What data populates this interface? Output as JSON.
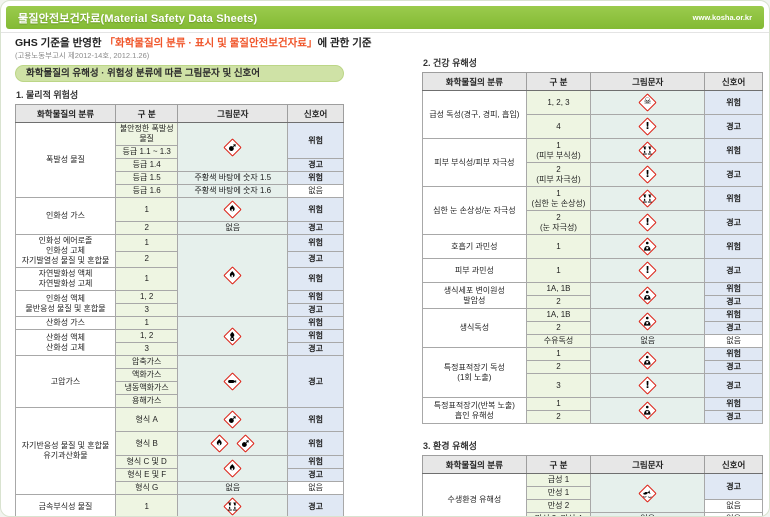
{
  "banner": {
    "title": "물질안전보건자료(Material Safety Data Sheets)",
    "url": "www.kosha.or.kr"
  },
  "subtitle": {
    "prefix": "GHS 기준을 반영한 ",
    "highlight": "「화학물질의 분류 · 표시 및 물질안전보건자료」",
    "suffix": "에 관한 기준",
    "notice": "(고용노동부고시 제2012-14호, 2012.1.26)"
  },
  "section_title": "화학물질의 유해성 · 위험성 분류에 따른 그림문자 및 신호어",
  "signal_words": {
    "danger": "위험",
    "warning": "경고",
    "none": "없음"
  },
  "colors": {
    "banner_green": "#8dc63f",
    "section_bar_green": "#cfe2a6",
    "danger_text": "#f0512a",
    "warning_text": "#f7941d",
    "ghs_diamond_red": "#dc2318",
    "division_col_bg": "#eef5e2",
    "pictogram_col_bg": "#e6f0ec",
    "signal_col_bg": "#e0e8f4"
  },
  "tables": [
    {
      "id": "physical",
      "label": "1. 물리적 위험성",
      "headers": [
        "화학물질의 분류",
        "구 분",
        "그림문자",
        "신호어"
      ],
      "rows": [
        [
          {
            "c": 0,
            "t": "폭발성 물질",
            "rs": 5
          },
          {
            "c": 1,
            "t": "불안정한 폭발성물질"
          },
          {
            "c": 2,
            "ic": [
              "exploding-bomb"
            ],
            "rs": 3
          },
          {
            "c": 3,
            "t": "위험",
            "sw": "danger",
            "rs": 2
          }
        ],
        [
          {
            "c": 1,
            "t": "등급 1.1 ~ 1.3"
          }
        ],
        [
          {
            "c": 1,
            "t": "등급 1.4"
          },
          {
            "c": 3,
            "t": "경고",
            "sw": "warning"
          }
        ],
        [
          {
            "c": 1,
            "t": "등급 1.5"
          },
          {
            "c": 2,
            "t": "주황색 바탕에 숫자 1.5"
          },
          {
            "c": 3,
            "t": "위험",
            "sw": "danger"
          }
        ],
        [
          {
            "c": 1,
            "t": "등급 1.6"
          },
          {
            "c": 2,
            "t": "주황색 바탕에 숫자 1.6"
          },
          {
            "c": 3,
            "t": "없음",
            "sw": "none"
          }
        ],
        [
          {
            "c": 0,
            "t": "인화성 가스",
            "rs": 2
          },
          {
            "c": 1,
            "t": "1"
          },
          {
            "c": 2,
            "ic": [
              "flame"
            ]
          },
          {
            "c": 3,
            "t": "위험",
            "sw": "danger"
          }
        ],
        [
          {
            "c": 1,
            "t": "2"
          },
          {
            "c": 2,
            "t": "없음"
          },
          {
            "c": 3,
            "t": "경고",
            "sw": "warning"
          }
        ],
        [
          {
            "c": 0,
            "t": "인화성 에어로졸\n인화성 고체\n자기발열성 물질 및 혼합물",
            "rs": 2
          },
          {
            "c": 1,
            "t": "1"
          },
          {
            "c": 2,
            "ic": [
              "flame"
            ],
            "rs": 5
          },
          {
            "c": 3,
            "t": "위험",
            "sw": "danger"
          }
        ],
        [
          {
            "c": 1,
            "t": "2"
          },
          {
            "c": 3,
            "t": "경고",
            "sw": "warning"
          }
        ],
        [
          {
            "c": 0,
            "t": "자연발화성 액체\n자연발화성 고체"
          },
          {
            "c": 1,
            "t": "1"
          },
          {
            "c": 3,
            "t": "위험",
            "sw": "danger"
          }
        ],
        [
          {
            "c": 0,
            "t": "인화성 액체\n물반응성 물질 및 혼합물",
            "rs": 2
          },
          {
            "c": 1,
            "t": "1, 2"
          },
          {
            "c": 3,
            "t": "위험",
            "sw": "danger"
          }
        ],
        [
          {
            "c": 1,
            "t": "3"
          },
          {
            "c": 3,
            "t": "경고",
            "sw": "warning"
          }
        ],
        [
          {
            "c": 0,
            "t": "산화성 가스"
          },
          {
            "c": 1,
            "t": "1"
          },
          {
            "c": 2,
            "ic": [
              "flame-over-circle"
            ],
            "rs": 3
          },
          {
            "c": 3,
            "t": "위험",
            "sw": "danger"
          }
        ],
        [
          {
            "c": 0,
            "t": "산화성 액체\n산화성 고체",
            "rs": 2
          },
          {
            "c": 1,
            "t": "1, 2"
          },
          {
            "c": 3,
            "t": "위험",
            "sw": "danger"
          }
        ],
        [
          {
            "c": 1,
            "t": "3"
          },
          {
            "c": 3,
            "t": "경고",
            "sw": "warning"
          }
        ],
        [
          {
            "c": 0,
            "t": "고압가스",
            "rs": 4
          },
          {
            "c": 1,
            "t": "압축가스"
          },
          {
            "c": 2,
            "ic": [
              "gas-cylinder"
            ],
            "rs": 4
          },
          {
            "c": 3,
            "t": "경고",
            "sw": "warning",
            "rs": 4
          }
        ],
        [
          {
            "c": 1,
            "t": "액화가스"
          }
        ],
        [
          {
            "c": 1,
            "t": "냉동액화가스"
          }
        ],
        [
          {
            "c": 1,
            "t": "용해가스"
          }
        ],
        [
          {
            "c": 0,
            "t": "자기반응성 물질 및 혼합물\n유기과산화물",
            "rs": 5
          },
          {
            "c": 1,
            "t": "형식 A"
          },
          {
            "c": 2,
            "ic": [
              "exploding-bomb"
            ]
          },
          {
            "c": 3,
            "t": "위험",
            "sw": "danger"
          }
        ],
        [
          {
            "c": 1,
            "t": "형식 B"
          },
          {
            "c": 2,
            "ic": [
              "flame",
              "exploding-bomb"
            ]
          },
          {
            "c": 3,
            "t": "위험",
            "sw": "danger"
          }
        ],
        [
          {
            "c": 1,
            "t": "형식 C 및 D"
          },
          {
            "c": 2,
            "ic": [
              "flame"
            ],
            "rs": 2
          },
          {
            "c": 3,
            "t": "위험",
            "sw": "danger"
          }
        ],
        [
          {
            "c": 1,
            "t": "형식 E 및 F"
          },
          {
            "c": 3,
            "t": "경고",
            "sw": "warning"
          }
        ],
        [
          {
            "c": 1,
            "t": "형식 G"
          },
          {
            "c": 2,
            "t": "없음"
          },
          {
            "c": 3,
            "t": "없음",
            "sw": "none"
          }
        ],
        [
          {
            "c": 0,
            "t": "금속부식성 물질"
          },
          {
            "c": 1,
            "t": "1"
          },
          {
            "c": 2,
            "ic": [
              "corrosion"
            ]
          },
          {
            "c": 3,
            "t": "경고",
            "sw": "warning"
          }
        ]
      ]
    },
    {
      "id": "health",
      "label": "2. 건강 유해성",
      "headers": [
        "화학물질의 분류",
        "구 분",
        "그림문자",
        "신호어"
      ],
      "rows": [
        [
          {
            "c": 0,
            "t": "급성 독성(경구, 경피, 흡입)",
            "rs": 2
          },
          {
            "c": 1,
            "t": "1, 2, 3"
          },
          {
            "c": 2,
            "ic": [
              "skull-crossbones"
            ]
          },
          {
            "c": 3,
            "t": "위험",
            "sw": "danger"
          }
        ],
        [
          {
            "c": 1,
            "t": "4"
          },
          {
            "c": 2,
            "ic": [
              "exclamation"
            ]
          },
          {
            "c": 3,
            "t": "경고",
            "sw": "warning"
          }
        ],
        [
          {
            "c": 0,
            "t": "피부 부식성/피부 자극성",
            "rs": 2
          },
          {
            "c": 1,
            "t": "1\n(피부 부식성)"
          },
          {
            "c": 2,
            "ic": [
              "corrosion"
            ]
          },
          {
            "c": 3,
            "t": "위험",
            "sw": "danger"
          }
        ],
        [
          {
            "c": 1,
            "t": "2\n(피부 자극성)"
          },
          {
            "c": 2,
            "ic": [
              "exclamation"
            ]
          },
          {
            "c": 3,
            "t": "경고",
            "sw": "warning"
          }
        ],
        [
          {
            "c": 0,
            "t": "심한 눈 손상성/눈 자극성",
            "rs": 2
          },
          {
            "c": 1,
            "t": "1\n(심한 눈 손상성)"
          },
          {
            "c": 2,
            "ic": [
              "corrosion"
            ]
          },
          {
            "c": 3,
            "t": "위험",
            "sw": "danger"
          }
        ],
        [
          {
            "c": 1,
            "t": "2\n(눈 자극성)"
          },
          {
            "c": 2,
            "ic": [
              "exclamation"
            ]
          },
          {
            "c": 3,
            "t": "경고",
            "sw": "warning"
          }
        ],
        [
          {
            "c": 0,
            "t": "호흡기 과민성"
          },
          {
            "c": 1,
            "t": "1"
          },
          {
            "c": 2,
            "ic": [
              "health-hazard"
            ]
          },
          {
            "c": 3,
            "t": "위험",
            "sw": "danger"
          }
        ],
        [
          {
            "c": 0,
            "t": "피부 과민성"
          },
          {
            "c": 1,
            "t": "1"
          },
          {
            "c": 2,
            "ic": [
              "exclamation"
            ]
          },
          {
            "c": 3,
            "t": "경고",
            "sw": "warning"
          }
        ],
        [
          {
            "c": 0,
            "t": "생식세포 변이원성\n발암성",
            "rs": 2
          },
          {
            "c": 1,
            "t": "1A, 1B"
          },
          {
            "c": 2,
            "ic": [
              "health-hazard"
            ],
            "rs": 2
          },
          {
            "c": 3,
            "t": "위험",
            "sw": "danger"
          }
        ],
        [
          {
            "c": 1,
            "t": "2"
          },
          {
            "c": 3,
            "t": "경고",
            "sw": "warning"
          }
        ],
        [
          {
            "c": 0,
            "t": "생식독성",
            "rs": 3
          },
          {
            "c": 1,
            "t": "1A, 1B"
          },
          {
            "c": 2,
            "ic": [
              "health-hazard"
            ],
            "rs": 2
          },
          {
            "c": 3,
            "t": "위험",
            "sw": "danger"
          }
        ],
        [
          {
            "c": 1,
            "t": "2"
          },
          {
            "c": 3,
            "t": "경고",
            "sw": "warning"
          }
        ],
        [
          {
            "c": 1,
            "t": "수유독성"
          },
          {
            "c": 2,
            "t": "없음"
          },
          {
            "c": 3,
            "t": "없음",
            "sw": "none"
          }
        ],
        [
          {
            "c": 0,
            "t": "특정표적장기 독성\n(1회 노출)",
            "rs": 3
          },
          {
            "c": 1,
            "t": "1"
          },
          {
            "c": 2,
            "ic": [
              "health-hazard"
            ],
            "rs": 2
          },
          {
            "c": 3,
            "t": "위험",
            "sw": "danger"
          }
        ],
        [
          {
            "c": 1,
            "t": "2"
          },
          {
            "c": 3,
            "t": "경고",
            "sw": "warning"
          }
        ],
        [
          {
            "c": 1,
            "t": "3"
          },
          {
            "c": 2,
            "ic": [
              "exclamation"
            ]
          },
          {
            "c": 3,
            "t": "경고",
            "sw": "warning"
          }
        ],
        [
          {
            "c": 0,
            "t": "특정표적장기(반복 노출)\n흡인 유해성",
            "rs": 2
          },
          {
            "c": 1,
            "t": "1"
          },
          {
            "c": 2,
            "ic": [
              "health-hazard"
            ],
            "rs": 2
          },
          {
            "c": 3,
            "t": "위험",
            "sw": "danger"
          }
        ],
        [
          {
            "c": 1,
            "t": "2"
          },
          {
            "c": 3,
            "t": "경고",
            "sw": "warning"
          }
        ]
      ]
    },
    {
      "id": "environment",
      "label": "3. 환경 유해성",
      "headers": [
        "화학물질의 분류",
        "구 분",
        "그림문자",
        "신호어"
      ],
      "rows": [
        [
          {
            "c": 0,
            "t": "수생환경 유해성",
            "rs": 4
          },
          {
            "c": 1,
            "t": "급성 1"
          },
          {
            "c": 2,
            "ic": [
              "environment"
            ],
            "rs": 3
          },
          {
            "c": 3,
            "t": "경고",
            "sw": "warning",
            "rs": 2
          }
        ],
        [
          {
            "c": 1,
            "t": "만성 1"
          }
        ],
        [
          {
            "c": 1,
            "t": "만성 2"
          },
          {
            "c": 3,
            "t": "없음",
            "sw": "none"
          }
        ],
        [
          {
            "c": 1,
            "t": "만성 3, 만성 4"
          },
          {
            "c": 2,
            "t": "없음"
          },
          {
            "c": 3,
            "t": "없음",
            "sw": "none"
          }
        ]
      ]
    }
  ]
}
